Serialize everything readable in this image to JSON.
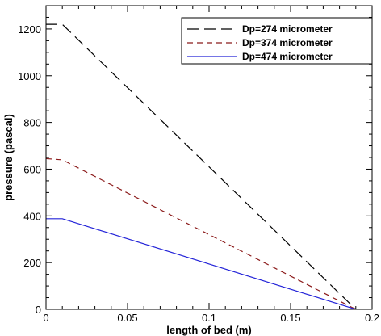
{
  "chart_data": {
    "type": "line",
    "xlabel": "length of bed (m)",
    "ylabel": "pressure (pascal)",
    "xlim": [
      0,
      0.2
    ],
    "ylim": [
      0,
      1300
    ],
    "xticks": [
      0,
      0.05,
      0.1,
      0.15,
      0.2
    ],
    "xtick_labels": [
      "0",
      "0.05",
      "0.1",
      "0.15",
      "0.2"
    ],
    "yticks": [
      0,
      200,
      400,
      600,
      800,
      1000,
      1200
    ],
    "ytick_labels": [
      "0",
      "200",
      "400",
      "600",
      "800",
      "1000",
      "1200"
    ],
    "grid": false,
    "legend_position": "top-right",
    "series": [
      {
        "name": "Dp=274 micrometer",
        "color": "#000000",
        "style": "long-dash",
        "x": [
          0,
          0.01,
          0.19
        ],
        "y": [
          1220,
          1220,
          0
        ]
      },
      {
        "name": "Dp=374 micrometer",
        "color": "#8b1a1a",
        "style": "dash",
        "x": [
          0,
          0.01,
          0.19
        ],
        "y": [
          645,
          640,
          0
        ]
      },
      {
        "name": "Dp=474 micrometer",
        "color": "#2323d8",
        "style": "solid",
        "x": [
          0,
          0.01,
          0.19
        ],
        "y": [
          388,
          388,
          0
        ]
      }
    ]
  }
}
